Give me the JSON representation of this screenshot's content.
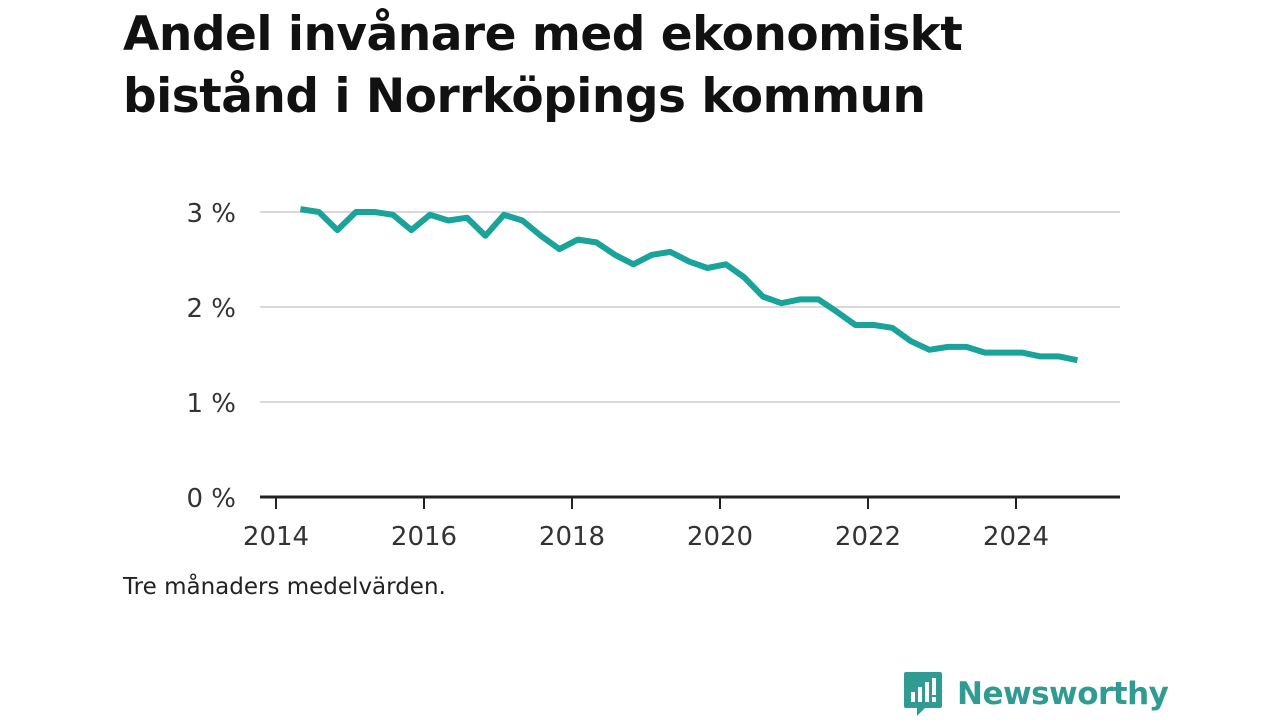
{
  "title": "Andel invånare med ekonomiskt bistånd i Norrköpings kommun",
  "note": "Tre månaders medelvärden.",
  "brand": {
    "name": "Newsworthy",
    "logo_icon": "bar-chart-speech-bubble-icon",
    "color": "#2f9b92"
  },
  "colors": {
    "line": "#1aa39a",
    "grid": "#d9d9d9",
    "axis": "#222222"
  },
  "chart_data": {
    "type": "line",
    "title": "Andel invånare med ekonomiskt bistånd i Norrköpings kommun",
    "xlabel": "",
    "ylabel": "",
    "xlim": [
      2013.9,
      2025.4
    ],
    "ylim": [
      0,
      3
    ],
    "y_ticks": [
      {
        "value": 0,
        "label": "0 %"
      },
      {
        "value": 1,
        "label": "1 %"
      },
      {
        "value": 2,
        "label": "2 %"
      },
      {
        "value": 3,
        "label": "3 %"
      }
    ],
    "x_ticks": [
      {
        "value": 2014,
        "label": "2014"
      },
      {
        "value": 2016,
        "label": "2016"
      },
      {
        "value": 2018,
        "label": "2018"
      },
      {
        "value": 2020,
        "label": "2020"
      },
      {
        "value": 2022,
        "label": "2022"
      },
      {
        "value": 2024,
        "label": "2024"
      }
    ],
    "grid": true,
    "series": [
      {
        "x": [
          2014.33,
          2014.58,
          2014.83,
          2015.08,
          2015.33,
          2015.58,
          2015.83,
          2016.08,
          2016.33,
          2016.58,
          2016.83,
          2017.08,
          2017.33,
          2017.58,
          2017.83,
          2018.08,
          2018.33,
          2018.58,
          2018.83,
          2019.08,
          2019.33,
          2019.58,
          2019.83,
          2020.08,
          2020.33,
          2020.58,
          2020.83,
          2021.08,
          2021.33,
          2021.58,
          2021.83,
          2022.08,
          2022.33,
          2022.58,
          2022.83,
          2023.08,
          2023.33,
          2023.58,
          2023.83,
          2024.08,
          2024.33,
          2024.58,
          2024.83
        ],
        "values": [
          3.03,
          3.0,
          2.81,
          3.0,
          3.0,
          2.97,
          2.81,
          2.97,
          2.91,
          2.94,
          2.75,
          2.97,
          2.91,
          2.75,
          2.61,
          2.71,
          2.68,
          2.55,
          2.45,
          2.55,
          2.58,
          2.48,
          2.41,
          2.45,
          2.31,
          2.11,
          2.04,
          2.08,
          2.08,
          1.95,
          1.81,
          1.81,
          1.78,
          1.64,
          1.55,
          1.58,
          1.58,
          1.52,
          1.52,
          1.52,
          1.48,
          1.48,
          1.44
        ]
      }
    ]
  }
}
